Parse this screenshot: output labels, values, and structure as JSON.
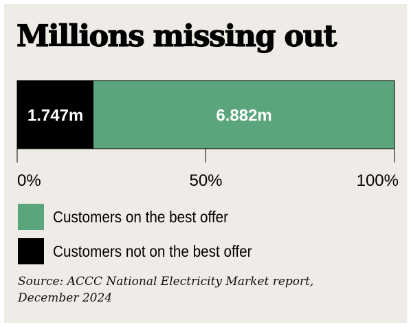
{
  "title": "Millions missing out",
  "chart_data": {
    "type": "bar",
    "orientation": "horizontal",
    "stacked": true,
    "percent_scale": true,
    "series": [
      {
        "name": "Customers not on the best offer",
        "value": 1.747,
        "label": "1.747m",
        "color": "#000000"
      },
      {
        "name": "Customers on the best offer",
        "value": 6.882,
        "label": "6.882m",
        "color": "#5aa57c"
      }
    ],
    "x_ticks": [
      "0%",
      "50%",
      "100%"
    ],
    "xlim": [
      0,
      100
    ],
    "grid": false,
    "legend_position": "bottom"
  },
  "legend": [
    {
      "label": "Customers on the best offer",
      "color": "#5aa57c"
    },
    {
      "label": "Customers not on the best offer",
      "color": "#000000"
    }
  ],
  "source": "Source: ACCC National Electricity Market report, December 2024"
}
